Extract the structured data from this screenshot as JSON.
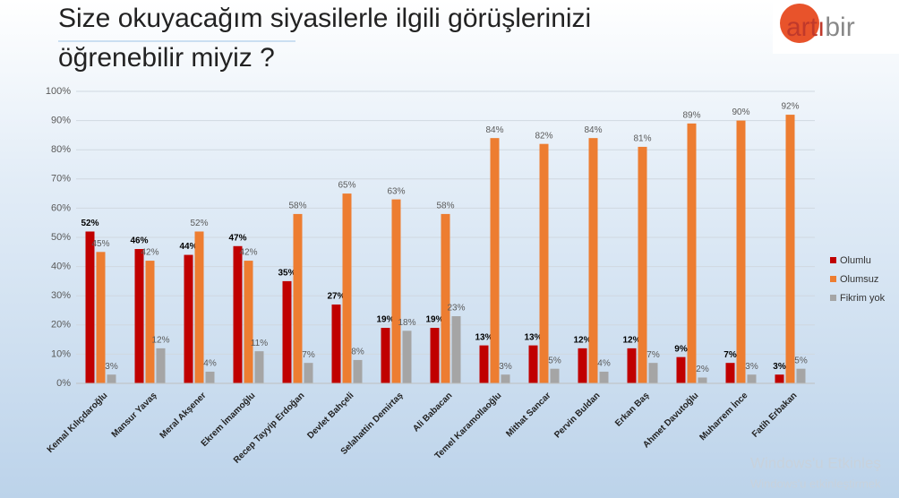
{
  "chart_data": {
    "type": "bar",
    "title": [
      "Size okuyacağım siyasilerle ilgili görüşlerinizi",
      "öğrenebilir miyiz ?"
    ],
    "categories": [
      "Kemal Kılıçdaroğlu",
      "Mansur Yavaş",
      "Meral Akşener",
      "Ekrem İmamoğlu",
      "Recep Tayyip Erdoğan",
      "Devlet Bahçeli",
      "Selahattin Demirtaş",
      "Ali Babacan",
      "Temel Karamollaoğlu",
      "Mithat Sancar",
      "Pervin Buldan",
      "Erkan Baş",
      "Ahmet Davutoğlu",
      "Muharrem İnce",
      "Fatih Erbakan"
    ],
    "series": [
      {
        "name": "Olumlu",
        "color": "#c00000",
        "values": [
          52,
          46,
          44,
          47,
          35,
          27,
          19,
          19,
          13,
          13,
          12,
          12,
          9,
          7,
          3
        ],
        "value_labels": [
          "52%",
          "46%",
          "44%",
          "47%",
          "35%",
          "27%",
          "19%",
          "19%",
          "13%",
          "13%",
          "12%",
          "12%",
          "9%",
          "7%",
          "3%"
        ]
      },
      {
        "name": "Olumsuz",
        "color": "#ed7d31",
        "values": [
          45,
          42,
          52,
          42,
          58,
          65,
          63,
          58,
          84,
          82,
          84,
          81,
          89,
          90,
          92
        ],
        "value_labels": [
          "45%",
          "42%",
          "52%",
          "42%",
          "58%",
          "65%",
          "63%",
          "58%",
          "84%",
          "82%",
          "84%",
          "81%",
          "89%",
          "90%",
          "92%"
        ]
      },
      {
        "name": "Fikrim yok",
        "color": "#a5a5a5",
        "values": [
          3,
          12,
          4,
          11,
          7,
          8,
          18,
          23,
          3,
          5,
          4,
          7,
          2,
          3,
          5
        ],
        "value_labels": [
          "3%",
          "12%",
          "4%",
          "11%",
          "7%",
          "8%",
          "18%",
          "23%",
          "3%",
          "5%",
          "4%",
          "7%",
          "2%",
          "3%",
          "5%"
        ]
      }
    ],
    "ylim": [
      0,
      100
    ],
    "yticks": [
      {
        "value": 0,
        "label": "0%"
      },
      {
        "value": 10,
        "label": "10%"
      },
      {
        "value": 20,
        "label": "20%"
      },
      {
        "value": 30,
        "label": "30%"
      },
      {
        "value": 40,
        "label": "40%"
      },
      {
        "value": 50,
        "label": "50%"
      },
      {
        "value": 60,
        "label": "60%"
      },
      {
        "value": 70,
        "label": "70%"
      },
      {
        "value": 80,
        "label": "80%"
      },
      {
        "value": 90,
        "label": "90%"
      },
      {
        "value": 100,
        "label": "100%"
      }
    ],
    "grid": true,
    "legend": "right"
  },
  "logo": {
    "part1": "artı",
    "part2": "bir"
  },
  "watermark": [
    "Windows'u Etkinleş",
    "Windows'u etkinleştirmek"
  ]
}
